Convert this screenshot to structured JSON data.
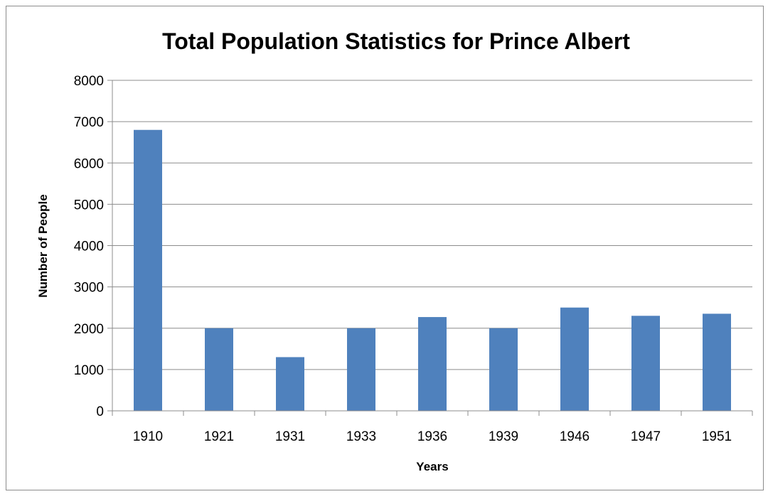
{
  "chart_data": {
    "type": "bar",
    "title": "Total Population Statistics for Prince Albert",
    "xlabel": "Years",
    "ylabel": "Number of People",
    "categories": [
      "1910",
      "1921",
      "1931",
      "1933",
      "1936",
      "1939",
      "1946",
      "1947",
      "1951"
    ],
    "series": [
      {
        "values": [
          6800,
          2000,
          1300,
          2000,
          2270,
          2000,
          2500,
          2300,
          2350
        ]
      }
    ],
    "ylim": [
      0,
      8000
    ],
    "yticks": [
      "0",
      "1000",
      "2000",
      "3000",
      "4000",
      "5000",
      "6000",
      "7000",
      "8000"
    ],
    "grid": "horizontal",
    "legend": "none",
    "colors": {
      "bar": "#4f81bd",
      "grid": "#8c8c8c",
      "axis": "#8c8c8c",
      "border": "#8c8c8c"
    }
  }
}
